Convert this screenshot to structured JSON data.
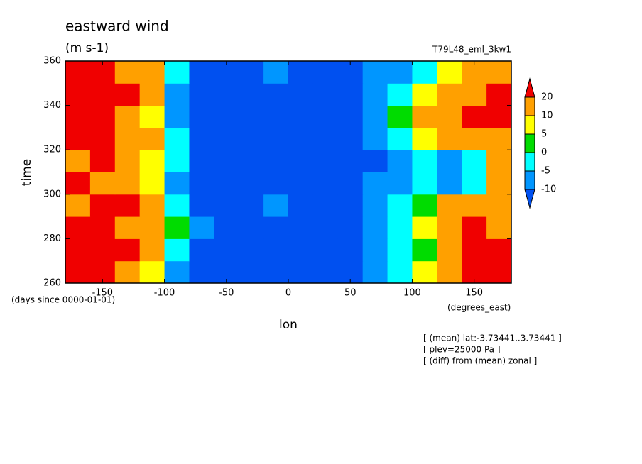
{
  "chart_data": {
    "type": "heatmap",
    "title": "eastward wind",
    "subtitle": "(m s-1)",
    "run_label": "T79L48_eml_3kw1",
    "xlabel": "lon",
    "ylabel": "time",
    "x_units": "(degrees_east)",
    "y_units": "(days since 0000-01-01)",
    "notes": [
      "[ (mean) lat:-3.73441..3.73441 ]",
      "[ plev=25000 Pa ]",
      "[ (diff) from (mean) zonal ]"
    ],
    "x": [
      -170,
      -150,
      -130,
      -110,
      -90,
      -70,
      -50,
      -30,
      -10,
      10,
      30,
      50,
      70,
      90,
      110,
      130,
      150,
      170
    ],
    "y": [
      265,
      275,
      285,
      295,
      305,
      315,
      325,
      335,
      345,
      355
    ],
    "z": [
      [
        25,
        25,
        15,
        7,
        -7,
        -15,
        -15,
        -15,
        -15,
        -15,
        -15,
        -15,
        -7,
        -3,
        7,
        15,
        25,
        25
      ],
      [
        25,
        25,
        25,
        15,
        -3,
        -15,
        -15,
        -15,
        -15,
        -15,
        -15,
        -15,
        -7,
        -3,
        2,
        15,
        25,
        25
      ],
      [
        25,
        25,
        15,
        15,
        2,
        -7,
        -15,
        -15,
        -15,
        -15,
        -15,
        -15,
        -7,
        -3,
        7,
        15,
        25,
        15
      ],
      [
        15,
        25,
        25,
        15,
        -3,
        -15,
        -15,
        -15,
        -7,
        -15,
        -15,
        -15,
        -7,
        -3,
        2,
        15,
        15,
        15
      ],
      [
        25,
        15,
        15,
        7,
        -7,
        -15,
        -15,
        -15,
        -15,
        -15,
        -15,
        -15,
        -7,
        -7,
        -3,
        -7,
        -3,
        15
      ],
      [
        15,
        25,
        15,
        7,
        -3,
        -15,
        -15,
        -15,
        -15,
        -15,
        -15,
        -15,
        -15,
        -7,
        -3,
        -7,
        -3,
        15
      ],
      [
        25,
        25,
        15,
        15,
        -3,
        -15,
        -15,
        -15,
        -15,
        -15,
        -15,
        -15,
        -7,
        -3,
        7,
        15,
        15,
        15
      ],
      [
        25,
        25,
        15,
        7,
        -7,
        -15,
        -15,
        -15,
        -15,
        -15,
        -15,
        -15,
        -7,
        2,
        15,
        15,
        25,
        25
      ],
      [
        25,
        25,
        25,
        15,
        -7,
        -15,
        -15,
        -15,
        -15,
        -15,
        -15,
        -15,
        -7,
        -3,
        7,
        15,
        15,
        25
      ],
      [
        25,
        25,
        15,
        15,
        -3,
        -15,
        -15,
        -15,
        -7,
        -15,
        -15,
        -15,
        -7,
        -7,
        -3,
        7,
        15,
        15
      ]
    ],
    "xlim": [
      -180,
      180
    ],
    "ylim": [
      260,
      360
    ],
    "xticks": [
      -150,
      -100,
      -50,
      0,
      50,
      100,
      150
    ],
    "yticks": [
      260,
      280,
      300,
      320,
      340,
      360
    ],
    "levels": [
      -10,
      -5,
      0,
      5,
      10,
      20
    ],
    "colors": [
      "#0050f0",
      "#0096ff",
      "#00ffff",
      "#00dc00",
      "#ffff00",
      "#ffa000",
      "#f00000"
    ]
  }
}
